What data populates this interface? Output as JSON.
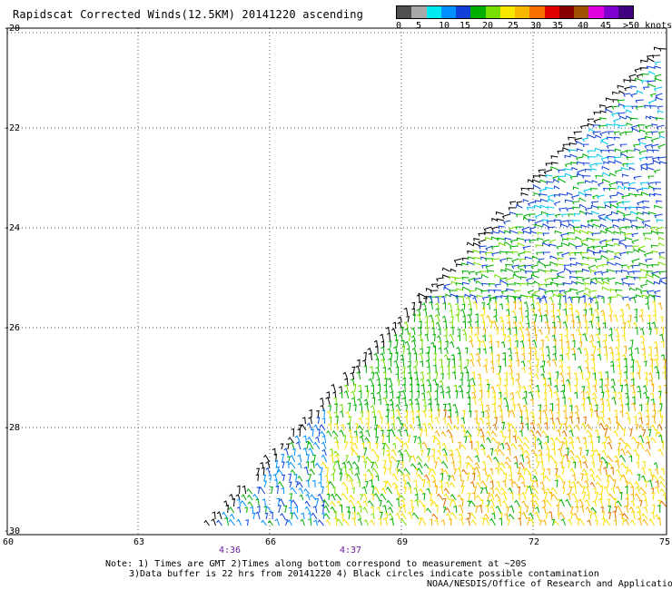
{
  "title": "Rapidscat Corrected Winds(12.5KM) 20141220 ascending",
  "legend": {
    "colors": [
      "#505050",
      "#a8a8a8",
      "#00e8f0",
      "#0090ff",
      "#1040d8",
      "#00b000",
      "#78e000",
      "#f8e800",
      "#f8b800",
      "#f87000",
      "#e00000",
      "#880000",
      "#a05000",
      "#e000e0",
      "#8000d0",
      "#400080"
    ],
    "labels": [
      "0",
      "5",
      "10",
      "15",
      "20",
      "25",
      "30",
      "35",
      "40",
      "45",
      ">50 knots"
    ]
  },
  "axes": {
    "lat_ticks": [
      "-20",
      "-22",
      "-24",
      "-26",
      "-28",
      "-30"
    ],
    "lon_ticks": [
      "60",
      "63",
      "66",
      "69",
      "72",
      "75"
    ]
  },
  "times": [
    "4:36",
    "4:37"
  ],
  "notes": {
    "line1": "Note: 1) Times are GMT 2)Times along bottom correspond to measurement at ~20S",
    "line2": "3)Data buffer is 22 hrs from 20141220 4) Black circles indicate possible contamination"
  },
  "credit": "NOAA/NESDIS/Office of Research and Applications"
}
